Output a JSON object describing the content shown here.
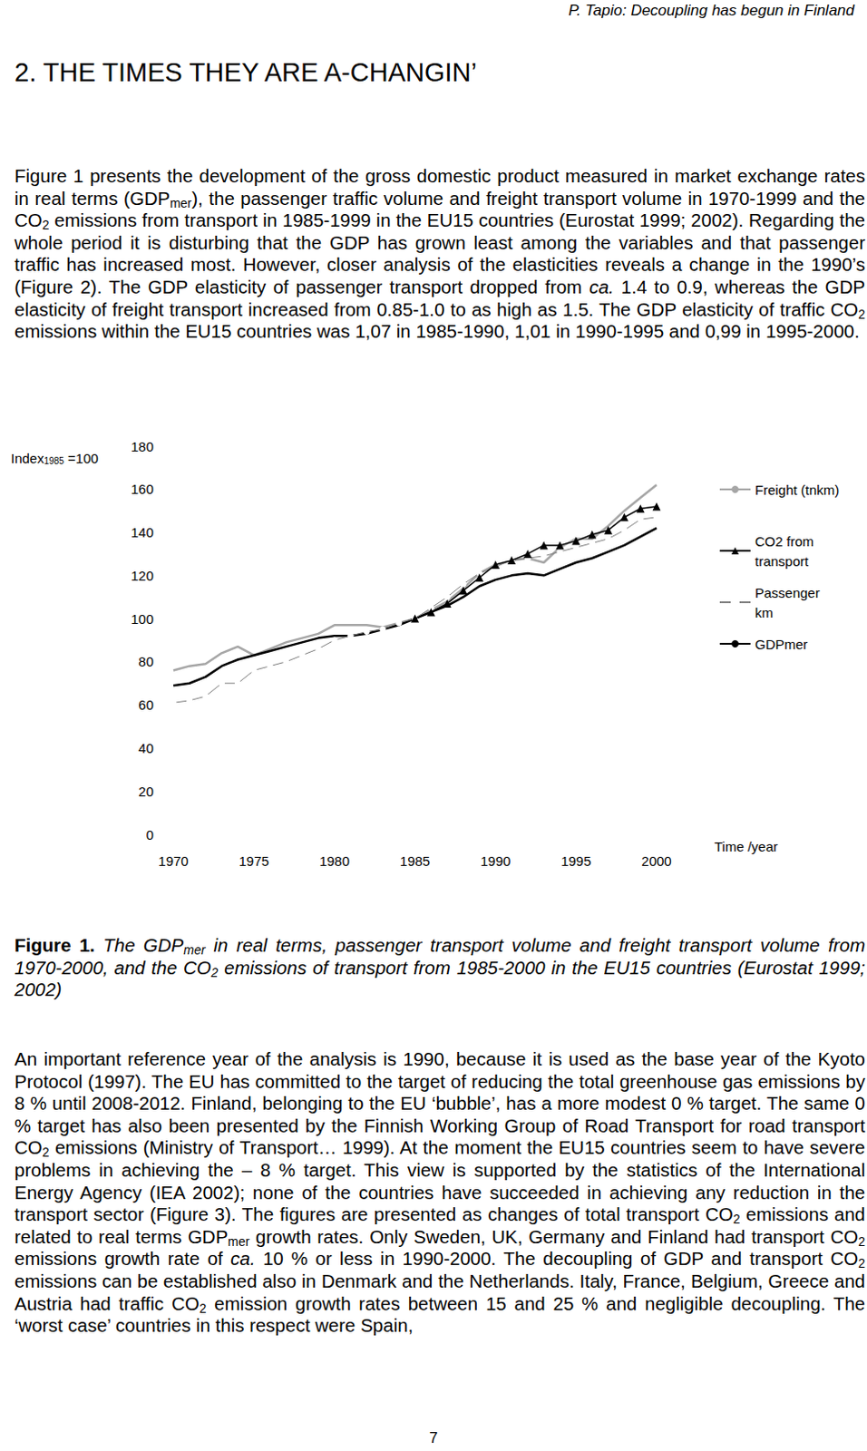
{
  "header": "P. Tapio: Decoupling has begun in Finland",
  "heading": "2. THE TIMES THEY ARE A-CHANGIN’",
  "text_before_figure": [
    "Figure 1 presents the development of the gross domestic product measured in market exchange rates in real terms (GDP",
    {
      "sub": "mer"
    },
    "), the passenger traffic volume and freight transport volume in 1970-1999 and the CO",
    {
      "sub": "2"
    },
    " emissions from transport in 1985-1999 in the EU15 countries (Eurostat 1999; 2002). Regarding the whole period it is disturbing that the GDP has grown least among the variables and that passenger traffic has increased most. However, closer analysis of the elasticities reveals a change in the 1990’s (Figure 2). The GDP elasticity of passenger transport dropped from ",
    {
      "i": "ca."
    },
    " 1.4 to 0.9, whereas the GDP elasticity of freight transport increased from 0.85-1.0 to as high as 1.5. The GDP elasticity of traffic CO",
    {
      "sub": "2"
    },
    " emissions within the EU15 countries was 1,07 in 1985-1990, 1,01 in 1990-1995 and 0,99 in 1995-2000."
  ],
  "chart_data": {
    "type": "line",
    "ylabel": [
      "Index",
      {
        "sub": "1985"
      },
      " =100"
    ],
    "xlabel": "Time /year",
    "x": [
      1970,
      1971,
      1972,
      1973,
      1974,
      1975,
      1976,
      1977,
      1978,
      1979,
      1980,
      1981,
      1982,
      1983,
      1984,
      1985,
      1986,
      1987,
      1988,
      1989,
      1990,
      1991,
      1992,
      1993,
      1994,
      1995,
      1996,
      1997,
      1998,
      1999,
      2000
    ],
    "xlim": [
      1970,
      2000
    ],
    "xticks": [
      1970,
      1975,
      1980,
      1985,
      1990,
      1995,
      2000
    ],
    "ylim": [
      0,
      180
    ],
    "yticks": [
      0,
      20,
      40,
      60,
      80,
      100,
      120,
      140,
      160,
      180
    ],
    "grid": false,
    "legend": "right",
    "series": [
      {
        "name": "Freight (tnkm)",
        "color": "#a6a6a6",
        "marker": "none",
        "values": [
          76,
          78,
          79,
          84,
          87,
          83,
          86,
          89,
          91,
          93,
          97,
          97,
          97,
          96,
          98,
          100,
          104,
          108,
          114,
          121,
          125,
          127,
          128,
          126,
          133,
          137,
          137,
          143,
          150,
          156,
          162
        ]
      },
      {
        "name": "CO2 from transport",
        "color": "#000000",
        "marker": "triangle",
        "values": [
          null,
          null,
          null,
          null,
          null,
          null,
          null,
          null,
          null,
          null,
          null,
          null,
          null,
          null,
          null,
          100,
          103,
          107,
          113,
          119,
          125,
          127,
          130,
          134,
          134,
          136,
          139,
          141,
          147,
          151,
          152
        ]
      },
      {
        "name": "Passenger km",
        "color": "#808080",
        "marker": "emptyCircle",
        "values": [
          61,
          62,
          64,
          70,
          70,
          76,
          78,
          80,
          83,
          86,
          90,
          92,
          94,
          95,
          98,
          100,
          105,
          110,
          116,
          121,
          124,
          127,
          128,
          129,
          131,
          133,
          135,
          137,
          141,
          146,
          147
        ]
      },
      {
        "name": "GDPmer",
        "color": "#000000",
        "marker": "none",
        "values": [
          69,
          70,
          73,
          78,
          81,
          83,
          85,
          87,
          89,
          91,
          92,
          92,
          93,
          95,
          97,
          100,
          103,
          106,
          110,
          115,
          118,
          120,
          121,
          120,
          123,
          126,
          128,
          131,
          134,
          138,
          142
        ]
      }
    ]
  },
  "caption": [
    {
      "b": "Figure 1."
    },
    " The GDP",
    {
      "sub": "mer"
    },
    " in real terms, passenger transport volume and freight transport volume from 1970-2000, and the CO",
    {
      "sub": "2"
    },
    " emissions of transport from 1985-2000 in the EU15 countries (Eurostat 1999; 2002)"
  ],
  "text_after_figure": [
    "An important reference year of the analysis is 1990, because it is used as the base year of the Kyoto Protocol (1997). The EU has committed to the target of reducing the total greenhouse gas emissions by 8 % until 2008-2012. Finland, belonging to the EU ‘bubble’, has a more modest 0 % target. The same 0 % target has also been presented by the Finnish Working Group of Road Transport for road transport CO",
    {
      "sub": "2"
    },
    " emissions (Ministry of Transport… 1999). At the moment the EU15 countries seem to have severe problems in achieving the – 8 % target.  This view is supported by the statistics of the International Energy Agency (IEA 2002); none of the countries have succeeded in achieving any reduction in the transport sector (Figure 3). The figures are presented as changes of total transport CO",
    {
      "sub": "2"
    },
    " emissions and related to real terms GDP",
    {
      "sub": "mer"
    },
    " growth rates. Only Sweden, UK, Germany and Finland had transport CO",
    {
      "sub": "2"
    },
    " emissions growth rate of ",
    {
      "i": "ca."
    },
    " 10 % or less in 1990-2000. The decoupling of GDP and transport CO",
    {
      "sub": "2"
    },
    " emissions can be established also in Denmark and the Netherlands. Italy, France, Belgium, Greece and Austria had traffic CO",
    {
      "sub": "2"
    },
    " emission growth rates between 15 and 25 % and negligible decoupling. The ‘worst case’ countries in this respect were Spain,"
  ],
  "page_number": "7"
}
